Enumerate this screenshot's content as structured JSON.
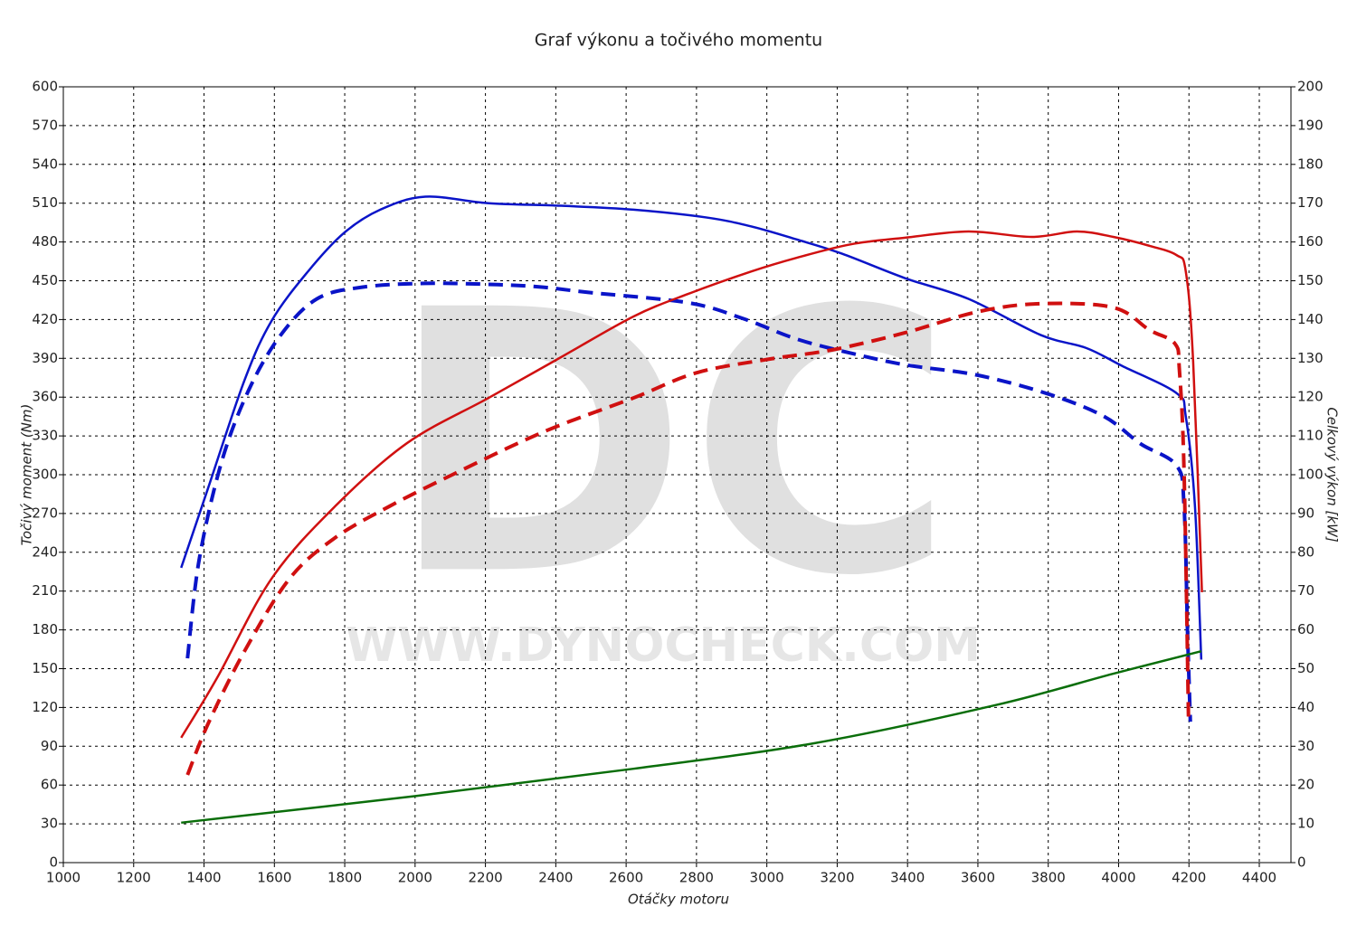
{
  "chart_data": {
    "type": "line",
    "title": "Graf výkonu a točivého momentu",
    "xlabel": "Otáčky motoru",
    "ylabel": "Točivý moment (Nm)",
    "y2label": "Celkový výkon [kW]",
    "watermark": [
      "DC",
      "WWW.DYNOCHECK.COM"
    ],
    "xlim": [
      1000,
      4490
    ],
    "xticks": [
      1000,
      1200,
      1400,
      1600,
      1800,
      2000,
      2200,
      2400,
      2600,
      2800,
      3000,
      3200,
      3400,
      3600,
      3800,
      4000,
      4200,
      4400
    ],
    "ylim": [
      0,
      600
    ],
    "yticks": [
      0,
      30,
      60,
      90,
      120,
      150,
      180,
      210,
      240,
      270,
      300,
      330,
      360,
      390,
      420,
      450,
      480,
      510,
      540,
      570,
      600
    ],
    "y2lim": [
      0,
      200
    ],
    "y2ticks": [
      0,
      10,
      20,
      30,
      40,
      50,
      60,
      70,
      80,
      90,
      100,
      110,
      120,
      130,
      140,
      150,
      160,
      170,
      180,
      190,
      200
    ],
    "grid": true,
    "series": [
      {
        "color": "#0a14c8",
        "dashed": false,
        "axis": "y",
        "x": [
          1335,
          1412,
          1515,
          1592,
          1695,
          1798,
          1901,
          2029,
          2209,
          2415,
          2621,
          2827,
          2956,
          3084,
          3213,
          3393,
          3573,
          3779,
          3908,
          4011,
          4165,
          4191,
          4217,
          4235
        ],
        "values": [
          228,
          290,
          373,
          419,
          457,
          487,
          505,
          515,
          510,
          508,
          505,
          499,
          492,
          482,
          471,
          452,
          436,
          408,
          398,
          384,
          363,
          345,
          276,
          157
        ]
      },
      {
        "color": "#0a14c8",
        "dashed": true,
        "axis": "y",
        "x": [
          1353,
          1386,
          1450,
          1528,
          1618,
          1721,
          1849,
          2029,
          2235,
          2364,
          2493,
          2776,
          2930,
          3084,
          3239,
          3393,
          3599,
          3805,
          3959,
          4062,
          4165,
          4186,
          4196,
          4204
        ],
        "values": [
          158,
          234,
          310,
          366,
          408,
          436,
          445,
          448,
          447,
          445,
          441,
          433,
          421,
          405,
          394,
          385,
          377,
          362,
          345,
          324,
          307,
          276,
          178,
          109
        ]
      },
      {
        "color": "#d01010",
        "dashed": false,
        "axis": "y2",
        "x": [
          1335,
          1437,
          1592,
          1772,
          1978,
          2209,
          2415,
          2621,
          2776,
          2956,
          3084,
          3239,
          3393,
          3573,
          3753,
          3882,
          3985,
          4088,
          4165,
          4191,
          4212,
          4237
        ],
        "values": [
          32.2,
          47.6,
          73.2,
          91.8,
          108.2,
          119.8,
          130.3,
          140.8,
          146.6,
          152.4,
          155.9,
          159.4,
          161.1,
          162.7,
          161.3,
          162.7,
          161.3,
          159,
          156.6,
          152.4,
          129.1,
          69.7
        ]
      },
      {
        "color": "#d01010",
        "dashed": true,
        "axis": "y2",
        "x": [
          1353,
          1412,
          1515,
          1643,
          1772,
          1926,
          2106,
          2364,
          2621,
          2801,
          3007,
          3187,
          3393,
          3599,
          3779,
          3985,
          4088,
          4160,
          4173,
          4186,
          4199
        ],
        "values": [
          22.6,
          35.9,
          54.5,
          73.2,
          83.7,
          91.8,
          100,
          111,
          119.8,
          126.3,
          129.8,
          132.2,
          136.6,
          142,
          144.1,
          143.1,
          137.3,
          133.8,
          126.8,
          101.2,
          35.9
        ]
      },
      {
        "color": "#0a6e0a",
        "dashed": false,
        "axis": "y2",
        "x": [
          1335,
          2004,
          2621,
          3136,
          3650,
          3985,
          4235
        ],
        "values": [
          10.3,
          17.2,
          24.2,
          30.8,
          40.6,
          48.7,
          54.5
        ]
      }
    ]
  }
}
